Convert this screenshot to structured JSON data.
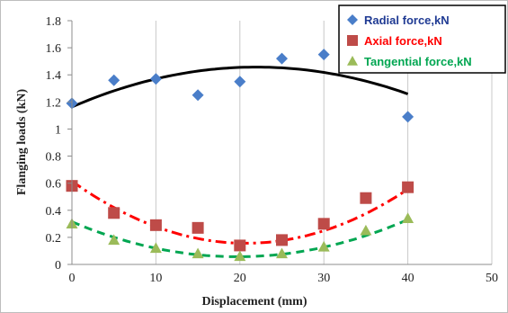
{
  "chart_data": {
    "type": "scatter",
    "title": "",
    "xlabel": "Displacement (mm)",
    "ylabel": "Flanging loads (kN)",
    "xlim": [
      0,
      50
    ],
    "ylim": [
      0,
      1.8
    ],
    "x_ticks": [
      "0",
      "10",
      "20",
      "30",
      "40",
      "50"
    ],
    "y_ticks": [
      "0",
      "0.2",
      "0.4",
      "0.6",
      "0.8",
      "1",
      "1.2",
      "1.4",
      "1.6",
      "1.8"
    ],
    "grid": "vertical",
    "legend_position": "top-right",
    "series": [
      {
        "name": "Radial  force,kN",
        "marker": "diamond",
        "color": "#4a7ec9",
        "points": [
          [
            0,
            1.19
          ],
          [
            5,
            1.36
          ],
          [
            10,
            1.37
          ],
          [
            15,
            1.25
          ],
          [
            20,
            1.35
          ],
          [
            25,
            1.52
          ],
          [
            30,
            1.55
          ],
          [
            40,
            1.09
          ]
        ],
        "trend": {
          "style": "solid",
          "color": "#000000",
          "coef": [
            -0.00061,
            0.0268,
            1.163
          ],
          "x_range": [
            0,
            40
          ]
        }
      },
      {
        "name": "Axial  force,kN",
        "marker": "square",
        "color": "#be4b48",
        "points": [
          [
            0,
            0.58
          ],
          [
            5,
            0.38
          ],
          [
            10,
            0.29
          ],
          [
            15,
            0.27
          ],
          [
            20,
            0.14
          ],
          [
            25,
            0.18
          ],
          [
            30,
            0.3
          ],
          [
            35,
            0.49
          ],
          [
            40,
            0.57
          ]
        ],
        "trend": {
          "style": "dashdot",
          "color": "#ff0000",
          "coef": [
            0.00107,
            -0.0443,
            0.615
          ],
          "x_range": [
            0,
            40
          ]
        }
      },
      {
        "name": "Tangential  force,kN",
        "marker": "triangle",
        "color": "#9bbb59",
        "points": [
          [
            0,
            0.3
          ],
          [
            5,
            0.18
          ],
          [
            10,
            0.12
          ],
          [
            15,
            0.08
          ],
          [
            20,
            0.06
          ],
          [
            25,
            0.08
          ],
          [
            30,
            0.13
          ],
          [
            35,
            0.25
          ],
          [
            40,
            0.34
          ]
        ],
        "trend": {
          "style": "dash",
          "color": "#00a651",
          "coef": [
            0.000665,
            -0.0262,
            0.315
          ],
          "x_range": [
            0,
            40
          ]
        }
      }
    ]
  },
  "legend": {
    "label_colors": [
      "#1f3a93",
      "#ff0000",
      "#00a651"
    ]
  }
}
